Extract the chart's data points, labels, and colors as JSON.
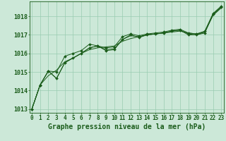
{
  "background_color": "#cce8d8",
  "grid_color": "#99ccb0",
  "line_color": "#1a5c1a",
  "marker_color": "#1a5c1a",
  "xlabel": "Graphe pression niveau de la mer (hPa)",
  "xlabel_fontsize": 7,
  "ylabel_tick_fontsize": 6,
  "xlabel_tick_fontsize": 5.5,
  "ylim": [
    1012.8,
    1018.8
  ],
  "yticks": [
    1013,
    1014,
    1015,
    1016,
    1017,
    1018
  ],
  "xticks": [
    0,
    1,
    2,
    3,
    4,
    5,
    6,
    7,
    8,
    9,
    10,
    11,
    12,
    13,
    14,
    15,
    16,
    17,
    18,
    19,
    20,
    21,
    22,
    23
  ],
  "series1": [
    1013.0,
    1014.3,
    1015.05,
    1014.65,
    1015.5,
    1015.75,
    1016.0,
    1016.3,
    1016.4,
    1016.15,
    1016.2,
    1016.75,
    1017.0,
    1016.85,
    1017.0,
    1017.05,
    1017.1,
    1017.2,
    1017.25,
    1017.0,
    1017.0,
    1017.1,
    1018.1,
    1018.5
  ],
  "series2": [
    1013.0,
    1014.3,
    1015.05,
    1015.0,
    1015.85,
    1016.0,
    1016.15,
    1016.5,
    1016.4,
    1016.3,
    1016.35,
    1016.9,
    1017.05,
    1016.95,
    1017.05,
    1017.1,
    1017.15,
    1017.25,
    1017.3,
    1017.1,
    1017.05,
    1017.2,
    1018.15,
    1018.55
  ],
  "series3": [
    1013.0,
    1014.3,
    1014.8,
    1015.1,
    1015.55,
    1015.75,
    1016.0,
    1016.2,
    1016.3,
    1016.35,
    1016.4,
    1016.65,
    1016.8,
    1016.9,
    1017.0,
    1017.05,
    1017.1,
    1017.15,
    1017.2,
    1017.1,
    1017.05,
    1017.15,
    1018.05,
    1018.45
  ],
  "series4": [
    1013.0,
    1014.3,
    1015.05,
    1014.65,
    1015.5,
    1015.75,
    1016.0,
    1016.3,
    1016.4,
    1016.2,
    1016.25,
    1016.75,
    1016.95,
    1016.9,
    1017.0,
    1017.05,
    1017.1,
    1017.2,
    1017.25,
    1017.05,
    1017.0,
    1017.15,
    1018.1,
    1018.5
  ]
}
